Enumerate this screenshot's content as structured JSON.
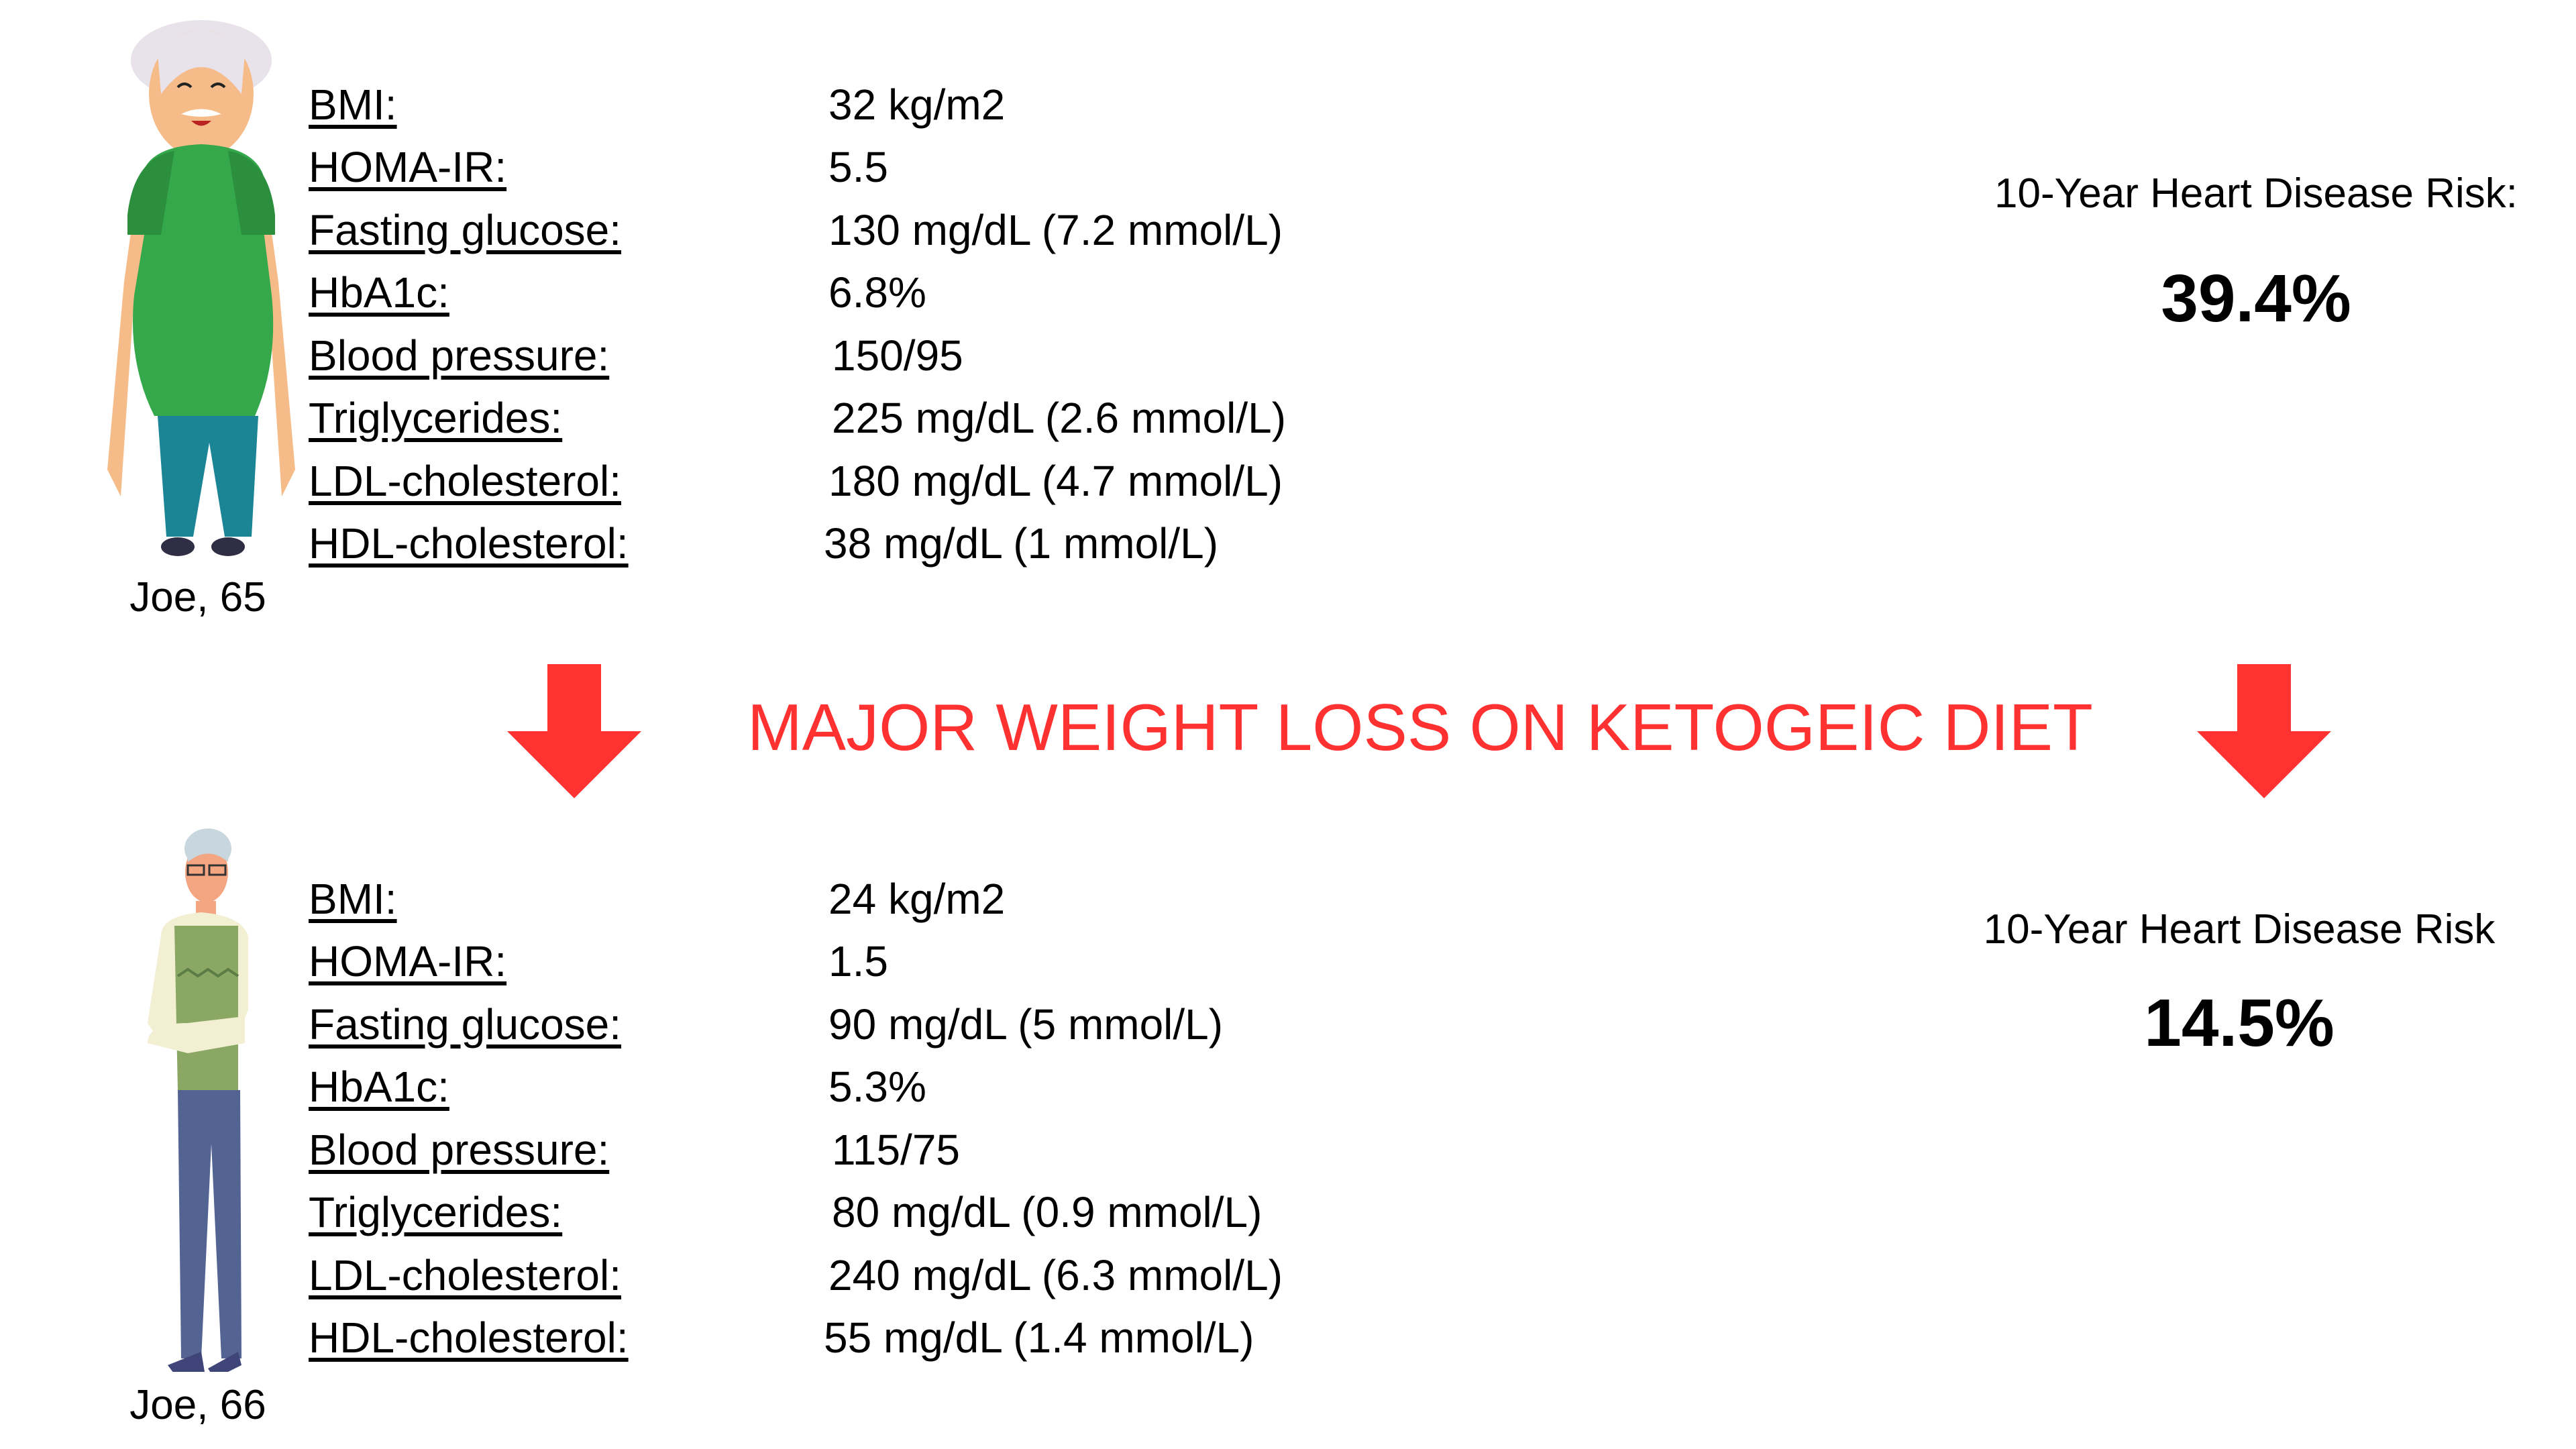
{
  "colors": {
    "accent": "#ff3131",
    "text": "#000000"
  },
  "headline": "MAJOR WEIGHT LOSS ON KETOGEIC DIET",
  "before": {
    "name": "Joe, 65",
    "metrics": [
      {
        "label": "BMI:",
        "value": "32 kg/m2"
      },
      {
        "label": "HOMA-IR:",
        "value": "5.5"
      },
      {
        "label": "Fasting glucose:",
        "value": "130 mg/dL (7.2 mmol/L)"
      },
      {
        "label": "HbA1c:",
        "value": "6.8%"
      },
      {
        "label": "Blood pressure:",
        "value": "150/95"
      },
      {
        "label": "Triglycerides:",
        "value": "225 mg/dL (2.6 mmol/L)"
      },
      {
        "label": "LDL-cholesterol:",
        "value": "180 mg/dL (4.7 mmol/L)"
      },
      {
        "label": "HDL-cholesterol:",
        "value": "38 mg/dL (1 mmol/L)"
      }
    ],
    "risk_label": "10-Year Heart Disease Risk:",
    "risk_value": "39.4%"
  },
  "after": {
    "name": "Joe, 66",
    "metrics": [
      {
        "label": "BMI:",
        "value": "24 kg/m2"
      },
      {
        "label": "HOMA-IR:",
        "value": "1.5"
      },
      {
        "label": "Fasting glucose:",
        "value": "90 mg/dL (5 mmol/L)"
      },
      {
        "label": "HbA1c:",
        "value": "5.3%"
      },
      {
        "label": "Blood pressure:",
        "value": "115/75"
      },
      {
        "label": "Triglycerides:",
        "value": "80 mg/dL (0.9 mmol/L)"
      },
      {
        "label": "LDL-cholesterol:",
        "value": "240 mg/dL (6.3 mmol/L)"
      },
      {
        "label": "HDL-cholesterol:",
        "value": "55 mg/dL (1.4 mmol/L)"
      }
    ],
    "risk_label": "10-Year Heart Disease Risk",
    "risk_value": "14.5%"
  }
}
